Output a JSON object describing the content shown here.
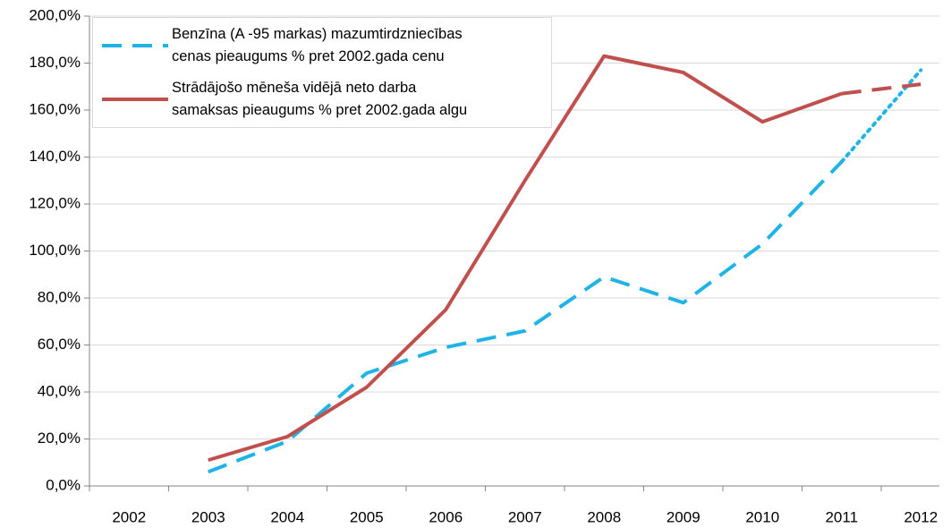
{
  "chart_data": {
    "type": "line",
    "categories": [
      "2002",
      "2003",
      "2004",
      "2005",
      "2006",
      "2007",
      "2008",
      "2009",
      "2010",
      "2011",
      "2012"
    ],
    "series": [
      {
        "name": "Benzīna (A -95 markas) mazumtirdzniecības\ncenas pieaugums % pret 2002.gada cenu",
        "color": "#1fb3e6",
        "dash": "dashed",
        "last_dash": "dotted",
        "values": [
          null,
          6,
          19,
          48,
          59,
          66,
          89,
          78,
          103,
          138,
          177
        ]
      },
      {
        "name": "Strādājošo mēneša vidējā neto darba\nsamaksas pieaugums % pret 2002.gada algu",
        "color": "#c0504d",
        "dash": "solid",
        "last_dash": "dashed",
        "values": [
          null,
          11,
          21,
          42,
          75,
          130,
          183,
          176,
          155,
          167,
          171
        ]
      }
    ],
    "ylim": [
      0,
      200
    ],
    "yticks": [
      {
        "value": 0,
        "label": "0,0%"
      },
      {
        "value": 20,
        "label": "20,0%"
      },
      {
        "value": 40,
        "label": "40,0%"
      },
      {
        "value": 60,
        "label": "60,0%"
      },
      {
        "value": 80,
        "label": "80,0%"
      },
      {
        "value": 100,
        "label": "100,0%"
      },
      {
        "value": 120,
        "label": "120,0%"
      },
      {
        "value": 140,
        "label": "140,0%"
      },
      {
        "value": 160,
        "label": "160,0%"
      },
      {
        "value": 180,
        "label": "180,0%"
      },
      {
        "value": 200,
        "label": "200,0%"
      }
    ],
    "grid": true,
    "legend": "top-left"
  }
}
